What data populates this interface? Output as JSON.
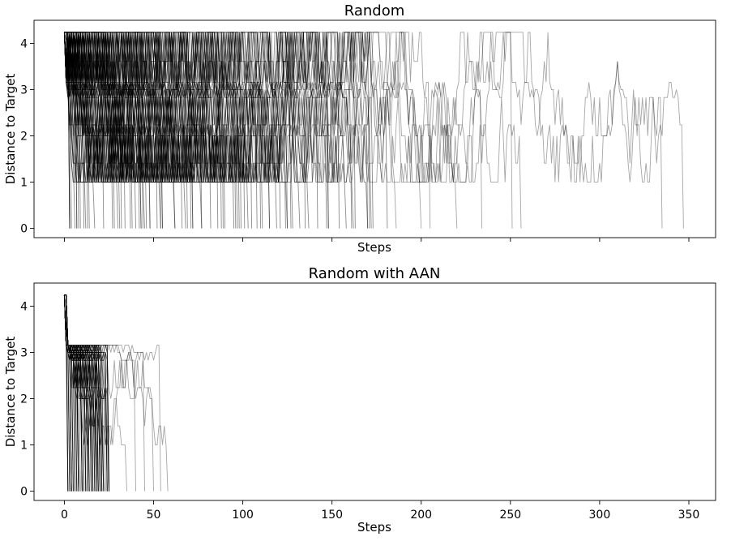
{
  "chart_data": [
    {
      "type": "line",
      "title": "Random",
      "xlabel": "Steps",
      "ylabel": "Distance to Target",
      "xlim": [
        -17,
        365
      ],
      "ylim": [
        -0.2,
        4.5
      ],
      "x_ticks": [
        0,
        50,
        100,
        150,
        200,
        250,
        300,
        350
      ],
      "x_tick_labels_shown": false,
      "y_ticks": [
        0,
        1,
        2,
        3,
        4
      ],
      "y_tick_labels": [
        "0",
        "1",
        "2",
        "3",
        "4"
      ],
      "grid": false,
      "series_style": "many semi-transparent black random-walk traces",
      "distance_levels": [
        0,
        1,
        1.41,
        2,
        2.24,
        2.83,
        3,
        3.16,
        3.61,
        4.24
      ],
      "start_distance": 4.24,
      "series_count": 100,
      "episode_length_range": [
        3,
        347
      ],
      "series": [
        {
          "name": "",
          "length": 347
        },
        {
          "name": "",
          "length": 335
        },
        {
          "name": "",
          "length": 256
        },
        {
          "name": "",
          "length": 251
        },
        {
          "name": "",
          "length": 234
        },
        {
          "name": "",
          "length": 220
        },
        {
          "name": "",
          "length": 205
        },
        {
          "name": "",
          "length": 200
        },
        {
          "name": "",
          "length": 186
        }
      ],
      "color": "#000000"
    },
    {
      "type": "line",
      "title": "Random with AAN",
      "xlabel": "Steps",
      "ylabel": "Distance to Target",
      "xlim": [
        -17,
        365
      ],
      "ylim": [
        -0.2,
        4.5
      ],
      "x_ticks": [
        0,
        50,
        100,
        150,
        200,
        250,
        300,
        350
      ],
      "x_tick_labels": [
        "0",
        "50",
        "100",
        "150",
        "200",
        "250",
        "300",
        "350"
      ],
      "y_ticks": [
        0,
        1,
        2,
        3,
        4
      ],
      "y_tick_labels": [
        "0",
        "1",
        "2",
        "3",
        "4"
      ],
      "grid": false,
      "series_style": "many semi-transparent black traces",
      "distance_levels": [
        0,
        1,
        1.41,
        2,
        2.24,
        2.83,
        3,
        3.16,
        4.24
      ],
      "start_distance": 4.24,
      "series_count": 100,
      "episode_length_range": [
        2,
        58
      ],
      "series": [
        {
          "name": "",
          "length": 58
        },
        {
          "name": "",
          "length": 54
        },
        {
          "name": "",
          "length": 50
        },
        {
          "name": "",
          "length": 45
        },
        {
          "name": "",
          "length": 40
        },
        {
          "name": "",
          "length": 35
        }
      ],
      "color": "#000000"
    }
  ]
}
